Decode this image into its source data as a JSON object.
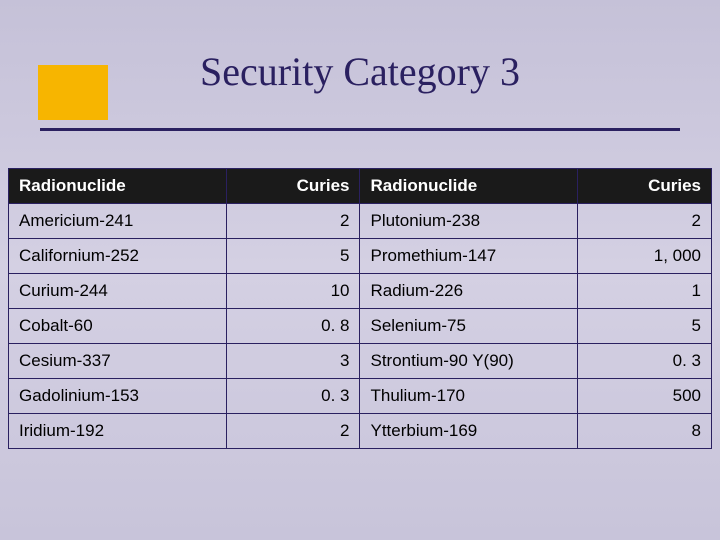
{
  "slide": {
    "title": "Security Category 3",
    "title_color": "#2a2060",
    "title_fontsize": 40,
    "accent_color": "#f7b500",
    "underline_color": "#2a2060",
    "background_gradient": [
      "#c5c1d8",
      "#d4d0e3",
      "#c8c4da"
    ]
  },
  "table": {
    "type": "table",
    "header_bg": "#1a1a1a",
    "header_fg": "#ffffff",
    "border_color": "#2a2060",
    "cell_fontsize": 17,
    "columns": [
      {
        "label": "Radionuclide",
        "align": "left"
      },
      {
        "label": "Curies",
        "align": "right"
      },
      {
        "label": "Radionuclide",
        "align": "left"
      },
      {
        "label": "Curies",
        "align": "right"
      }
    ],
    "rows": [
      [
        "Americium-241",
        "2",
        "Plutonium-238",
        "2"
      ],
      [
        "Californium-252",
        "5",
        "Promethium-147",
        "1, 000"
      ],
      [
        "Curium-244",
        "10",
        "Radium-226",
        "1"
      ],
      [
        "Cobalt-60",
        "0. 8",
        "Selenium-75",
        "5"
      ],
      [
        "Cesium-337",
        "3",
        "Strontium-90 Y(90)",
        "0. 3"
      ],
      [
        "Gadolinium-153",
        "0. 3",
        "Thulium-170",
        "500"
      ],
      [
        "Iridium-192",
        "2",
        "Ytterbium-169",
        "8"
      ]
    ]
  }
}
